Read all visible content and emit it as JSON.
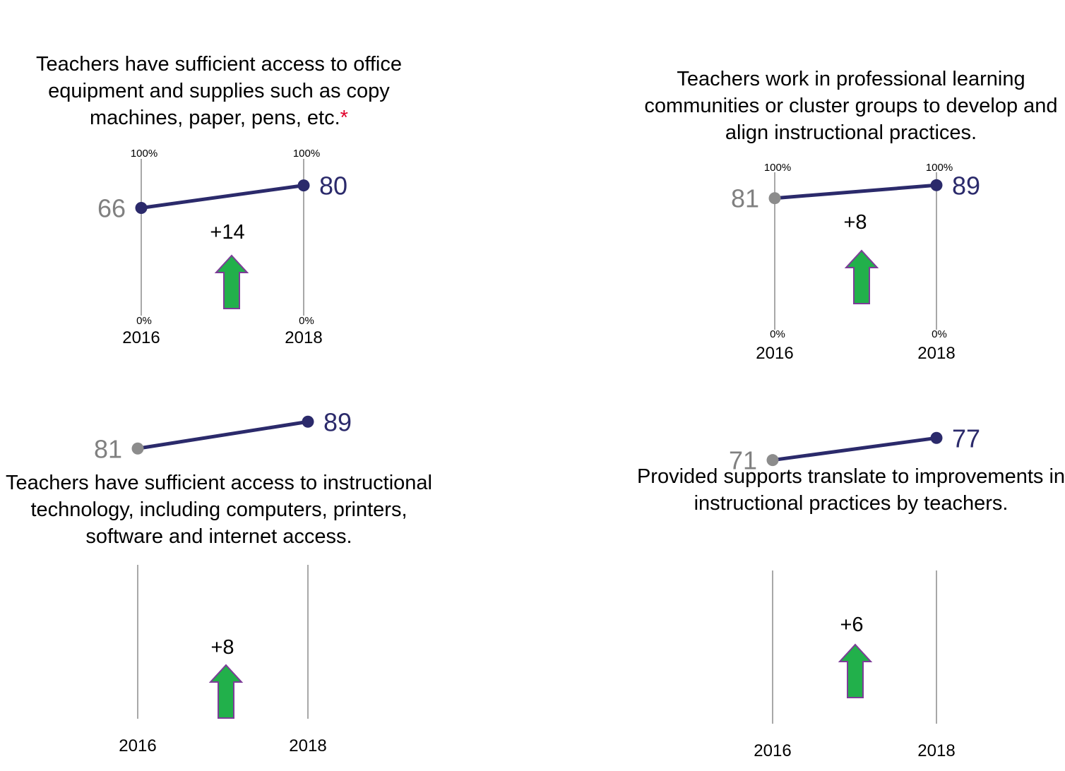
{
  "chart_data": [
    {
      "type": "line",
      "title": "Teachers have sufficient access to office equipment and supplies such as copy machines, paper, pens, etc.",
      "title_marker": "*",
      "categories": [
        "2016",
        "2018"
      ],
      "values": [
        66,
        80
      ],
      "value_labels": [
        "66",
        "80"
      ],
      "change_label": "+14",
      "axis_top_label": "100%",
      "axis_bottom_label": "0%",
      "ylim": [
        0,
        100
      ]
    },
    {
      "type": "line",
      "title": "Teachers work in professional learning communities or cluster groups to develop and align instructional practices.",
      "title_marker": "",
      "categories": [
        "2016",
        "2018"
      ],
      "values": [
        81,
        89
      ],
      "value_labels": [
        "81",
        "89"
      ],
      "change_label": "+8",
      "axis_top_label": "100%",
      "axis_bottom_label": "0%",
      "ylim": [
        0,
        100
      ]
    },
    {
      "type": "line",
      "title": "Teachers have sufficient access to instructional technology, including computers, printers, software and internet access.",
      "title_marker": "",
      "categories": [
        "2016",
        "2018"
      ],
      "values": [
        81,
        89
      ],
      "value_labels": [
        "81",
        "89"
      ],
      "change_label": "+8",
      "axis_top_label": "",
      "axis_bottom_label": "",
      "ylim": [
        0,
        100
      ]
    },
    {
      "type": "line",
      "title": "Provided supports translate to improvements in instructional practices by teachers.",
      "title_marker": "",
      "categories": [
        "2016",
        "2018"
      ],
      "values": [
        71,
        77
      ],
      "value_labels": [
        "71",
        "77"
      ],
      "change_label": "+6",
      "axis_top_label": "",
      "axis_bottom_label": "",
      "ylim": [
        0,
        100
      ]
    }
  ],
  "colors": {
    "line": "#2b2a6b",
    "start_dot": "#8c8c8c",
    "start_label": "#808080",
    "end_label": "#2b2a6b",
    "axis": "#8c8c8c",
    "arrow_fill": "#22b04b",
    "arrow_stroke": "#7d3c98",
    "title_marker": "#e0002a"
  }
}
